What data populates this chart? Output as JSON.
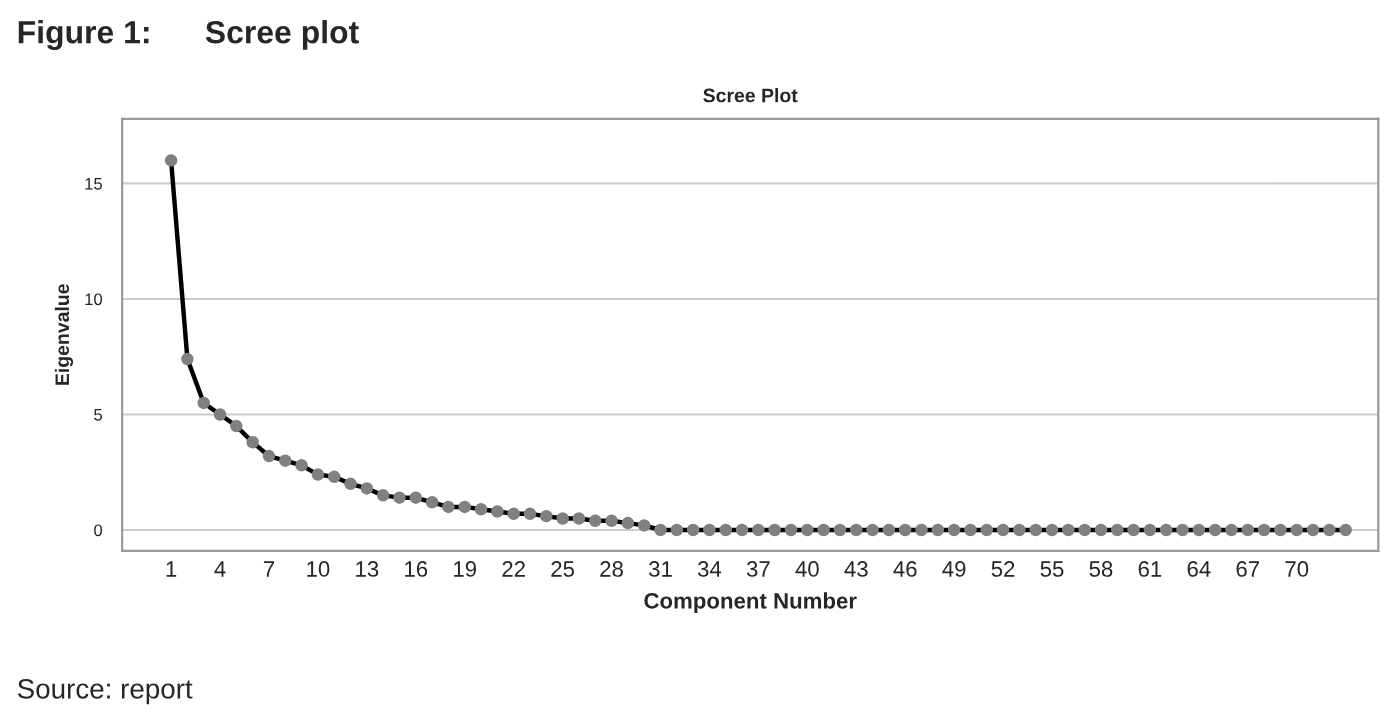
{
  "chart_data": {
    "type": "line",
    "title": "Scree Plot",
    "subtitle": "Figure 1:      Scree plot",
    "xlabel": "Component Number",
    "ylabel": "Eigenvalue",
    "annotations": [
      "Source: report"
    ],
    "categories": [
      "1",
      null,
      null,
      "4",
      null,
      null,
      "7",
      null,
      null,
      "10",
      null,
      null,
      "13",
      null,
      null,
      "16",
      null,
      null,
      "19",
      null,
      null,
      "22",
      null,
      null,
      "25",
      null,
      null,
      "28",
      null,
      null,
      "31",
      null,
      null,
      "34",
      null,
      null,
      "37",
      null,
      null,
      "40",
      null,
      null,
      "43",
      null,
      null,
      "46",
      null,
      null,
      "49",
      null,
      null,
      "52",
      null,
      null,
      "55",
      null,
      null,
      "58",
      null,
      null,
      "61",
      null,
      null,
      "64",
      null,
      null,
      "67",
      null,
      null,
      "70",
      null,
      null,
      null
    ],
    "series": [
      {
        "color": "#808080",
        "values": [
          16.0,
          7.4,
          5.5,
          5.0,
          4.5,
          3.8,
          3.2,
          3.0,
          2.8,
          2.4,
          2.3,
          2.0,
          1.8,
          1.5,
          1.4,
          1.4,
          1.2,
          1.0,
          1.0,
          0.9,
          0.8,
          0.7,
          0.7,
          0.6,
          0.5,
          0.5,
          0.4,
          0.4,
          0.3,
          0.2,
          0,
          0,
          0,
          0,
          0,
          0,
          0,
          0,
          0,
          0,
          0,
          0,
          0,
          0,
          0,
          0,
          0,
          0,
          0,
          0,
          0,
          0,
          0,
          0,
          0,
          0,
          0,
          0,
          0,
          0,
          0,
          0,
          0,
          0,
          0,
          0,
          0,
          0,
          0,
          0,
          0,
          0,
          0
        ]
      }
    ],
    "ylim": [
      -0.9,
      17.8
    ],
    "yticks": [
      0,
      5,
      10,
      15
    ],
    "grid": "y",
    "marker": "circle",
    "line_style": "solid"
  }
}
